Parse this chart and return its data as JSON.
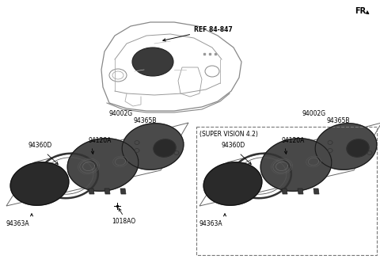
{
  "bg_color": "#ffffff",
  "fr_label": "FR.",
  "top_ref_label": "REF 84-847",
  "left_box": {
    "label_top": "94002G",
    "label_top2": "94365B",
    "label_mid": "94120A",
    "label_left": "94360D",
    "label_bottom_left": "94363A",
    "label_bottom_right": "1018AO"
  },
  "right_box": {
    "super_vision_label": "(SUPER VISION 4.2)",
    "label_top": "94002G",
    "label_top2": "94365B",
    "label_mid": "94120A",
    "label_left": "94360D",
    "label_bottom_left": "94363A"
  },
  "dash_color": "#aaaaaa",
  "part_dark": "#404040",
  "part_mid": "#585858",
  "part_light": "#707070",
  "part_edge": "#222222",
  "lens_color": "#252525"
}
